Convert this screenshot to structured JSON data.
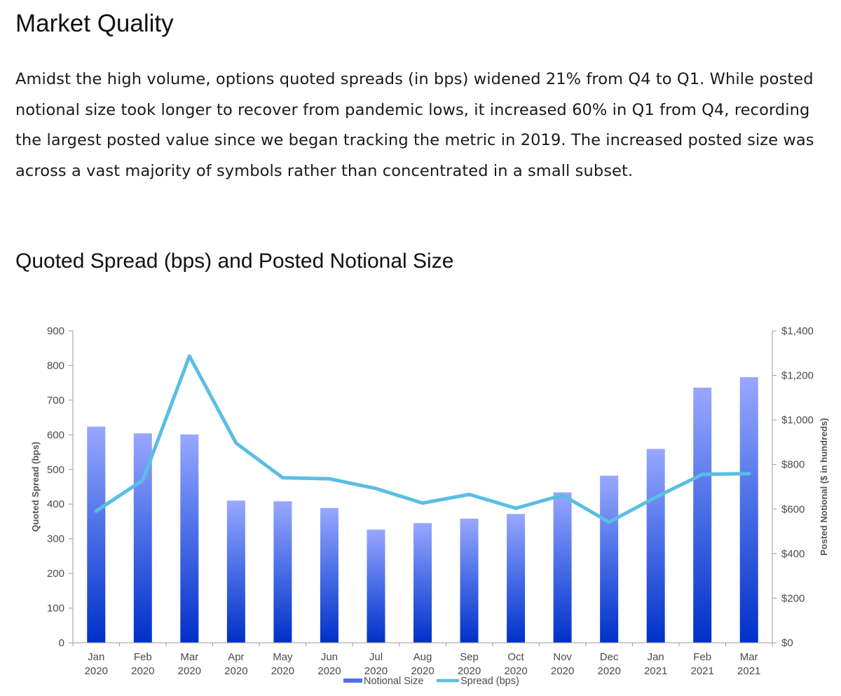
{
  "page": {
    "title": "Market Quality",
    "intro": "Amidst the high volume, options quoted spreads (in bps) widened 21% from Q4 to Q1. While posted notional size took longer to recover from pandemic lows, it increased 60% in Q1 from Q4, recording the largest posted value since we began tracking the metric in 2019. The increased posted size was across a vast majority of symbols rather than concentrated in a small subset.",
    "chart_heading": "Quoted Spread (bps) and Posted Notional Size"
  },
  "colors": {
    "bar_top": "#99a8ff",
    "bar_mid": "#4f72e8",
    "bar_bottom": "#0030c8",
    "line": "#5bbde4",
    "axis": "#999999"
  },
  "chart_data": {
    "type": "bar+line",
    "title": "Quoted Spread (bps) and Posted Notional Size",
    "categories": [
      [
        "Jan",
        "2020"
      ],
      [
        "Feb",
        "2020"
      ],
      [
        "Mar",
        "2020"
      ],
      [
        "Apr",
        "2020"
      ],
      [
        "May",
        "2020"
      ],
      [
        "Jun",
        "2020"
      ],
      [
        "Jul",
        "2020"
      ],
      [
        "Aug",
        "2020"
      ],
      [
        "Sep",
        "2020"
      ],
      [
        "Oct",
        "2020"
      ],
      [
        "Nov",
        "2020"
      ],
      [
        "Dec",
        "2020"
      ],
      [
        "Jan",
        "2021"
      ],
      [
        "Feb",
        "2021"
      ],
      [
        "Mar",
        "2021"
      ]
    ],
    "series": [
      {
        "name": "Notional Size",
        "kind": "bar",
        "axis": "right",
        "values": [
          970,
          940,
          935,
          638,
          635,
          605,
          508,
          537,
          557,
          578,
          675,
          750,
          870,
          1145,
          1192
        ]
      },
      {
        "name": "Spread (bps)",
        "kind": "line",
        "axis": "left",
        "values": [
          380,
          469,
          827,
          576,
          476,
          473,
          445,
          403,
          428,
          388,
          426,
          348,
          420,
          486,
          488
        ]
      }
    ],
    "left_axis": {
      "label": "Quoted Spread (bps)",
      "range": [
        0,
        900
      ],
      "ticks": [
        0,
        100,
        200,
        300,
        400,
        500,
        600,
        700,
        800,
        900
      ],
      "tick_labels": [
        "0",
        "100",
        "200",
        "300",
        "400",
        "500",
        "600",
        "700",
        "800",
        "900"
      ]
    },
    "right_axis": {
      "label": "Posted Notional ($ in hundreds)",
      "range": [
        0,
        1400
      ],
      "ticks": [
        0,
        200,
        400,
        600,
        800,
        1000,
        1200,
        1400
      ],
      "tick_labels": [
        "$0",
        "$200",
        "$400",
        "$600",
        "$800",
        "$1,000",
        "$1,200",
        "$1,400"
      ]
    },
    "legend": {
      "position": "bottom",
      "items": [
        "Notional Size",
        "Spread (bps)"
      ]
    },
    "grid": false
  }
}
